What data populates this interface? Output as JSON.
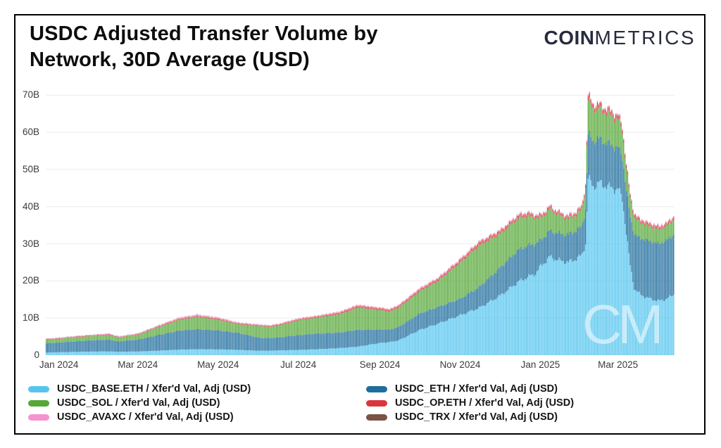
{
  "header": {
    "title_line1": "USDC Adjusted Transfer Volume by",
    "title_line2": "Network, 30D Average (USD)",
    "logo_bold": "COIN",
    "logo_light": "METRICS"
  },
  "watermark": "CM",
  "colors": {
    "grid": "#ececec",
    "axis_text": "#3a3a3a",
    "logo": "#272b3f",
    "watermark": "#ffffff"
  },
  "chart_data": {
    "type": "bar",
    "stacked": true,
    "title": "USDC Adjusted Transfer Volume by Network, 30D Average (USD)",
    "unit": "billions USD",
    "ylim": [
      0,
      71
    ],
    "grid": "horizontal",
    "legend_position": "bottom-two-columns",
    "x_epoch": "2024-01-01",
    "x_start_day": -10,
    "x_end_day": 467,
    "yticks": [
      {
        "label": "0",
        "value": 0
      },
      {
        "label": "10B",
        "value": 10
      },
      {
        "label": "20B",
        "value": 20
      },
      {
        "label": "30B",
        "value": 30
      },
      {
        "label": "40B",
        "value": 40
      },
      {
        "label": "50B",
        "value": 50
      },
      {
        "label": "60B",
        "value": 60
      },
      {
        "label": "70B",
        "value": 70
      }
    ],
    "xticks": [
      {
        "label": "Jan 2024",
        "day": 0
      },
      {
        "label": "Mar 2024",
        "day": 60
      },
      {
        "label": "May 2024",
        "day": 121
      },
      {
        "label": "Jul 2024",
        "day": 182
      },
      {
        "label": "Sep 2024",
        "day": 244
      },
      {
        "label": "Nov 2024",
        "day": 305
      },
      {
        "label": "Jan 2025",
        "day": 366
      },
      {
        "label": "Mar 2025",
        "day": 425
      }
    ],
    "series": [
      {
        "key": "base",
        "name": "USDC_BASE.ETH / Xfer'd Val, Adj (USD)",
        "color": "#55c5ef"
      },
      {
        "key": "eth",
        "name": "USDC_ETH / Xfer'd Val, Adj (USD)",
        "color": "#1f6d9d"
      },
      {
        "key": "sol",
        "name": "USDC_SOL / Xfer'd Val, Adj (USD)",
        "color": "#56a738"
      },
      {
        "key": "op",
        "name": "USDC_OP.ETH / Xfer'd Val, Adj (USD)",
        "color": "#d9363c"
      },
      {
        "key": "avaxc",
        "name": "USDC_AVAXC / Xfer'd Val, Adj (USD)",
        "color": "#f792d0"
      },
      {
        "key": "trx",
        "name": "USDC_TRX / Xfer'd Val, Adj (USD)",
        "color": "#7a5248"
      }
    ],
    "legend_columns": [
      [
        "base",
        "sol",
        "avaxc"
      ],
      [
        "eth",
        "op",
        "trx"
      ]
    ],
    "keyframes_note": "values are stacked segment sizes in billions USD, order = series order (base, eth, sol, op, avaxc, trx); daily bars are linearly interpolated between keyframe days",
    "keyframes": [
      {
        "day": -10,
        "values": [
          0.7,
          2.5,
          0.95,
          0.15,
          0.12,
          0.05
        ]
      },
      {
        "day": 0,
        "values": [
          0.8,
          2.6,
          1.0,
          0.15,
          0.12,
          0.05
        ]
      },
      {
        "day": 14,
        "values": [
          0.9,
          2.9,
          1.1,
          0.15,
          0.12,
          0.05
        ]
      },
      {
        "day": 31,
        "values": [
          1.0,
          3.1,
          1.2,
          0.18,
          0.15,
          0.05
        ]
      },
      {
        "day": 38,
        "values": [
          1.0,
          3.2,
          1.25,
          0.18,
          0.15,
          0.05
        ]
      },
      {
        "day": 45,
        "values": [
          0.9,
          2.8,
          1.05,
          0.15,
          0.12,
          0.05
        ]
      },
      {
        "day": 60,
        "values": [
          1.0,
          3.2,
          1.3,
          0.2,
          0.15,
          0.05
        ]
      },
      {
        "day": 75,
        "values": [
          1.2,
          4.2,
          2.1,
          0.25,
          0.2,
          0.05
        ]
      },
      {
        "day": 91,
        "values": [
          1.5,
          5.1,
          2.9,
          0.3,
          0.28,
          0.05
        ]
      },
      {
        "day": 105,
        "values": [
          1.6,
          5.4,
          3.3,
          0.32,
          0.3,
          0.05
        ]
      },
      {
        "day": 121,
        "values": [
          1.55,
          5.1,
          2.9,
          0.3,
          0.25,
          0.05
        ]
      },
      {
        "day": 135,
        "values": [
          1.45,
          4.6,
          2.3,
          0.27,
          0.2,
          0.05
        ]
      },
      {
        "day": 152,
        "values": [
          1.2,
          3.5,
          3.1,
          0.25,
          0.18,
          0.05
        ]
      },
      {
        "day": 160,
        "values": [
          1.2,
          3.4,
          3.0,
          0.25,
          0.18,
          0.05
        ]
      },
      {
        "day": 167,
        "values": [
          1.3,
          3.5,
          3.2,
          0.27,
          0.18,
          0.05
        ]
      },
      {
        "day": 182,
        "values": [
          1.4,
          4.0,
          4.0,
          0.3,
          0.2,
          0.05
        ]
      },
      {
        "day": 196,
        "values": [
          1.6,
          4.2,
          4.3,
          0.33,
          0.2,
          0.05
        ]
      },
      {
        "day": 213,
        "values": [
          1.9,
          4.2,
          4.9,
          0.45,
          0.25,
          0.05
        ]
      },
      {
        "day": 227,
        "values": [
          2.3,
          4.5,
          6.0,
          0.5,
          0.25,
          0.05
        ]
      },
      {
        "day": 244,
        "values": [
          3.3,
          3.6,
          5.2,
          0.5,
          0.2,
          0.05
        ]
      },
      {
        "day": 251,
        "values": [
          3.5,
          3.4,
          4.8,
          0.5,
          0.2,
          0.05
        ]
      },
      {
        "day": 258,
        "values": [
          4.0,
          3.6,
          5.2,
          0.5,
          0.25,
          0.05
        ]
      },
      {
        "day": 274,
        "values": [
          6.8,
          4.4,
          6.0,
          0.55,
          0.3,
          0.05
        ]
      },
      {
        "day": 288,
        "values": [
          8.5,
          4.5,
          7.0,
          0.6,
          0.3,
          0.05
        ]
      },
      {
        "day": 305,
        "values": [
          10.8,
          4.4,
          9.8,
          0.7,
          0.3,
          0.05
        ]
      },
      {
        "day": 319,
        "values": [
          12.7,
          5.6,
          11.2,
          0.8,
          0.3,
          0.05
        ]
      },
      {
        "day": 335,
        "values": [
          16.0,
          7.5,
          9.2,
          0.7,
          0.3,
          0.05
        ]
      },
      {
        "day": 349,
        "values": [
          19.8,
          8.6,
          8.5,
          0.7,
          0.3,
          0.05
        ]
      },
      {
        "day": 356,
        "values": [
          21.0,
          8.5,
          8.0,
          0.7,
          0.3,
          0.05
        ]
      },
      {
        "day": 362,
        "values": [
          22.0,
          8.0,
          7.0,
          0.6,
          0.3,
          0.05
        ]
      },
      {
        "day": 366,
        "values": [
          24.0,
          7.0,
          6.0,
          0.6,
          0.3,
          0.05
        ]
      },
      {
        "day": 373,
        "values": [
          26.5,
          7.0,
          5.8,
          0.6,
          0.3,
          0.05
        ]
      },
      {
        "day": 380,
        "values": [
          25.5,
          7.2,
          5.0,
          0.6,
          0.3,
          0.05
        ]
      },
      {
        "day": 387,
        "values": [
          25.0,
          7.5,
          4.2,
          0.6,
          0.3,
          0.05
        ]
      },
      {
        "day": 393,
        "values": [
          26.0,
          7.6,
          4.3,
          0.6,
          0.3,
          0.05
        ]
      },
      {
        "day": 397,
        "values": [
          26.8,
          7.8,
          4.5,
          0.7,
          0.3,
          0.05
        ]
      },
      {
        "day": 400,
        "values": [
          30.0,
          9.0,
          6.0,
          0.8,
          0.3,
          0.05
        ]
      },
      {
        "day": 402,
        "values": [
          47.5,
          11.8,
          9.3,
          1.1,
          0.35,
          0.05
        ]
      },
      {
        "day": 406,
        "values": [
          45.5,
          12.3,
          8.6,
          1.0,
          0.3,
          0.05
        ]
      },
      {
        "day": 411,
        "values": [
          46.3,
          11.9,
          8.1,
          1.0,
          0.3,
          0.05
        ]
      },
      {
        "day": 418,
        "values": [
          45.2,
          11.6,
          8.0,
          1.0,
          0.3,
          0.05
        ]
      },
      {
        "day": 425,
        "values": [
          44.6,
          11.2,
          7.6,
          1.0,
          0.3,
          0.05
        ]
      },
      {
        "day": 428,
        "values": [
          42.0,
          11.0,
          7.2,
          0.95,
          0.3,
          0.05
        ]
      },
      {
        "day": 431,
        "values": [
          33.0,
          11.5,
          6.2,
          0.85,
          0.3,
          0.05
        ]
      },
      {
        "day": 434,
        "values": [
          24.0,
          13.0,
          5.3,
          0.75,
          0.3,
          0.05
        ]
      },
      {
        "day": 437,
        "values": [
          18.0,
          14.5,
          4.6,
          0.7,
          0.3,
          0.05
        ]
      },
      {
        "day": 442,
        "values": [
          16.2,
          15.3,
          4.2,
          0.65,
          0.3,
          0.05
        ]
      },
      {
        "day": 449,
        "values": [
          15.2,
          15.5,
          4.0,
          0.6,
          0.3,
          0.05
        ]
      },
      {
        "day": 456,
        "values": [
          14.6,
          15.4,
          3.9,
          0.6,
          0.3,
          0.05
        ]
      },
      {
        "day": 462,
        "values": [
          15.2,
          15.8,
          3.9,
          0.6,
          0.3,
          0.05
        ]
      },
      {
        "day": 467,
        "values": [
          16.3,
          16.1,
          4.0,
          0.65,
          0.3,
          0.05
        ]
      }
    ]
  }
}
